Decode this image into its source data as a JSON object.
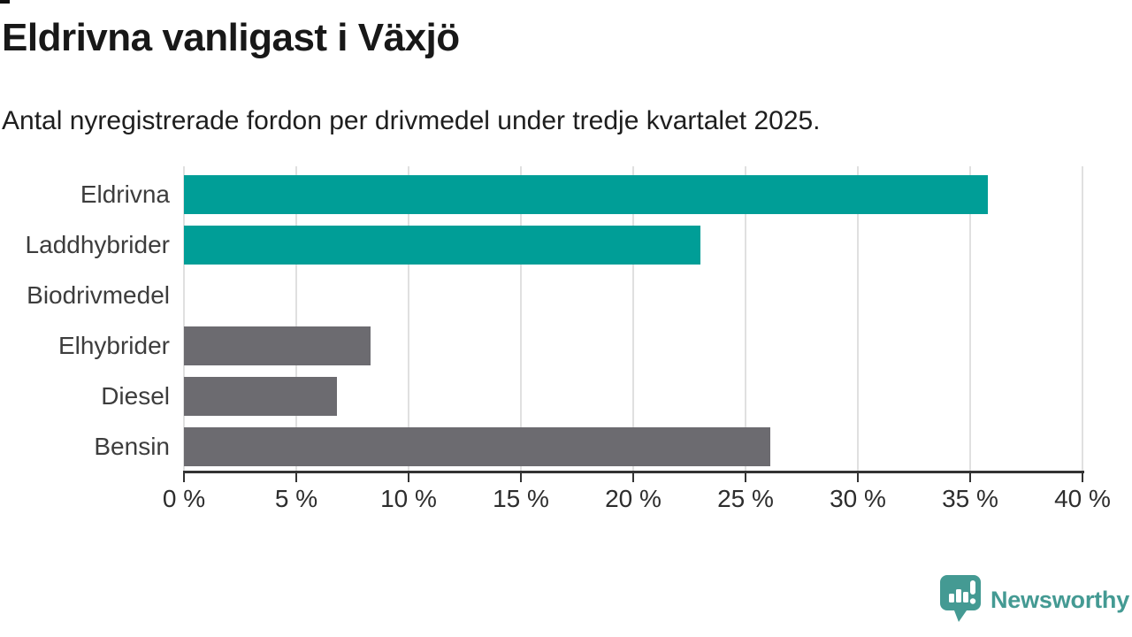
{
  "header": {
    "title": "Eldrivna vanligast i Växjö",
    "subtitle": "Antal nyregistrerade fordon per drivmedel under tredje kvartalet 2025."
  },
  "chart_data": {
    "type": "bar",
    "orientation": "horizontal",
    "title": "Eldrivna vanligast i Växjö",
    "subtitle": "Antal nyregistrerade fordon per drivmedel under tredje kvartalet 2025.",
    "categories": [
      "Eldrivna",
      "Laddhybrider",
      "Biodrivmedel",
      "Elhybrider",
      "Diesel",
      "Bensin"
    ],
    "values": [
      35.8,
      23.0,
      0,
      8.3,
      6.8,
      26.1
    ],
    "unit": "%",
    "xlabel": "",
    "ylabel": "",
    "xlim": [
      0,
      40
    ],
    "x_ticks": [
      0,
      5,
      10,
      15,
      20,
      25,
      30,
      35,
      40
    ],
    "x_tick_labels": [
      "0 %",
      "5 %",
      "10 %",
      "15 %",
      "20 %",
      "25 %",
      "30 %",
      "35 %",
      "40 %"
    ],
    "grid": "vertical-gridlines",
    "legend": "none",
    "bar_colors": [
      "#009E97",
      "#009E97",
      "#6C6B70",
      "#6C6B70",
      "#6C6B70",
      "#6C6B70"
    ]
  },
  "colors": {
    "bar_highlight": "#009E97",
    "bar_default": "#6C6B70",
    "gridline": "#E0E0E0",
    "axis": "#333333",
    "logo_teal": "#449A93"
  },
  "footer": {
    "brand": "Newsworthy",
    "logo_icon": "speech-bubble-bar-chart-icon"
  }
}
